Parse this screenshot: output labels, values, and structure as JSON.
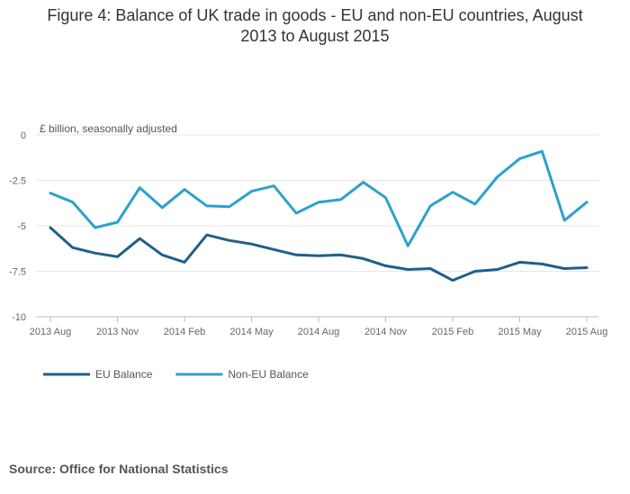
{
  "chart_data": {
    "type": "line",
    "title_line1": "Figure 4: Balance of UK trade in goods - EU and non-EU countries, August",
    "title_line2": "2013 to August 2015",
    "ylabel": "£ billion, seasonally adjusted",
    "ylim": [
      -10,
      0
    ],
    "yticks": [
      0,
      -2.5,
      -5,
      -7.5,
      -10
    ],
    "ytick_labels": [
      "0",
      "-2.5",
      "-5",
      "-7.5",
      "-10"
    ],
    "x_count": 25,
    "xtick_indices": [
      0,
      3,
      6,
      9,
      12,
      15,
      18,
      21,
      24
    ],
    "xtick_labels": [
      "2013 Aug",
      "2013 Nov",
      "2014 Feb",
      "2014 May",
      "2014 Aug",
      "2014 Nov",
      "2015 Feb",
      "2015 May",
      "2015 Aug"
    ],
    "series": [
      {
        "name": "EU Balance",
        "color": "#1f5f8b",
        "values": [
          -5.1,
          -6.2,
          -6.5,
          -6.7,
          -5.7,
          -6.6,
          -7.0,
          -5.5,
          -5.8,
          -6.0,
          -6.3,
          -6.6,
          -6.65,
          -6.6,
          -6.8,
          -7.2,
          -7.4,
          -7.35,
          -8.0,
          -7.5,
          -7.4,
          -7.0,
          -7.1,
          -7.35,
          -7.3
        ]
      },
      {
        "name": "Non-EU Balance",
        "color": "#2ca1cd",
        "values": [
          -3.2,
          -3.7,
          -5.1,
          -4.8,
          -2.9,
          -4.0,
          -3.0,
          -3.9,
          -3.95,
          -3.1,
          -2.8,
          -4.3,
          -3.7,
          -3.55,
          -2.6,
          -3.45,
          -6.1,
          -3.9,
          -3.15,
          -3.8,
          -2.3,
          -1.3,
          -0.9,
          -4.7,
          -3.7
        ]
      }
    ]
  },
  "source": "Source: Office for National Statistics"
}
